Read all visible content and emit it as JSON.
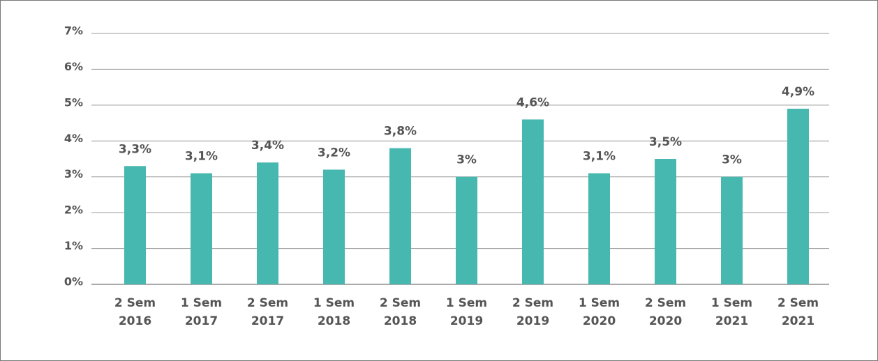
{
  "chart_data": {
    "type": "bar",
    "categories": [
      "2 Sem 2016",
      "1 Sem 2017",
      "2 Sem 2017",
      "1 Sem 2018",
      "2 Sem 2018",
      "1 Sem 2019",
      "2 Sem 2019",
      "1 Sem 2020",
      "2 Sem 2020",
      "1 Sem 2021",
      "2 Sem 2021"
    ],
    "values": [
      3.3,
      3.1,
      3.4,
      3.2,
      3.8,
      3,
      4.6,
      3.1,
      3.5,
      3,
      4.9
    ],
    "value_labels": [
      "3,3%",
      "3,1%",
      "3,4%",
      "3,2%",
      "3,8%",
      "3%",
      "4,6%",
      "3,1%",
      "3,5%",
      "3%",
      "4,9%"
    ],
    "color": "#47b8b0",
    "ylim": [
      0,
      7
    ],
    "yticks": [
      {
        "value": 0,
        "label": "0%"
      },
      {
        "value": 1,
        "label": "1%"
      },
      {
        "value": 2,
        "label": "2%"
      },
      {
        "value": 3,
        "label": "3%"
      },
      {
        "value": 4,
        "label": "4%"
      },
      {
        "value": 5,
        "label": "5%"
      },
      {
        "value": 6,
        "label": "6%"
      },
      {
        "value": 7,
        "label": "7%"
      }
    ],
    "grid": true
  }
}
